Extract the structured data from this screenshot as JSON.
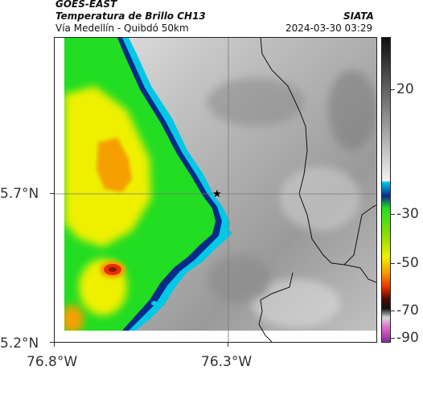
{
  "header": {
    "product": "GOES-EAST",
    "title": "Temperatura de Brillo CH13",
    "route": "Vía Medellín - Quibdó 50km",
    "agency": "SIATA",
    "datetime": "2024-03-30 03:29"
  },
  "map": {
    "lat_labels": [
      "5.7°N",
      "5.2°N"
    ],
    "lon_labels": [
      "76.8°W",
      "76.3°W"
    ],
    "marker": "star-marker",
    "colors": {
      "cold_gray": "#c8c8c8",
      "green": "#22dd22",
      "yellow": "#eef000",
      "orange": "#f5a000",
      "red": "#e83000",
      "blue": "#0a2a8a",
      "cyan": "#00c8e6"
    }
  },
  "colorbar": {
    "labels": [
      "20",
      "-30",
      "-50",
      "-70",
      "-90"
    ]
  }
}
